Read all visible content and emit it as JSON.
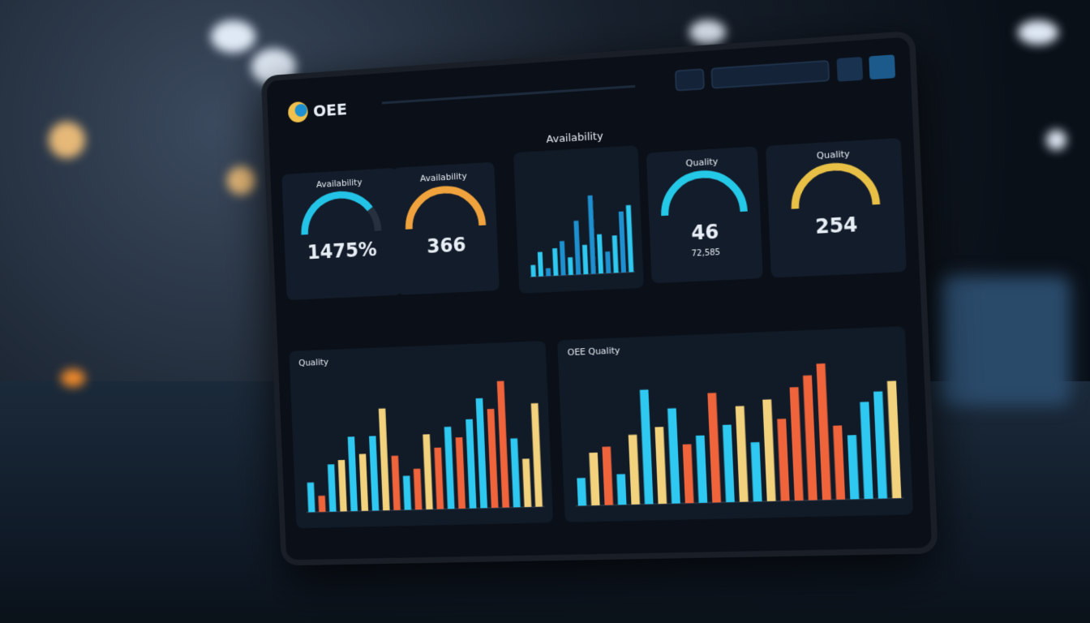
{
  "header": {
    "title": "OEE"
  },
  "gauges": [
    {
      "title": "Availability",
      "value": "1475%",
      "level": 0.8,
      "color": "#22c3e6"
    },
    {
      "title": "Availability",
      "value": "366",
      "level": 1,
      "color": "#f0a33c"
    },
    {
      "title": "Quality",
      "value": "46",
      "sub": "72,585",
      "level": 1,
      "color": "#24c9e8"
    },
    {
      "title": "Quality",
      "value": "254",
      "level": 1,
      "color": "#e9c046"
    }
  ],
  "charts": [
    {
      "type": "bar",
      "title": "Availability",
      "ylim": [
        0,
        100
      ],
      "values": [
        12,
        25,
        8,
        28,
        35,
        18,
        55,
        30,
        80,
        40,
        22,
        38,
        62,
        68
      ],
      "colors": [
        "#2ec8f0",
        "#2ec8f0",
        "#1e90d0",
        "#2ec8f0",
        "#1e90d0",
        "#2ec8f0",
        "#1e90d0",
        "#2ec8f0",
        "#1e90d0",
        "#2ec8f0",
        "#1e90d0",
        "#2ec8f0",
        "#1e90d0",
        "#2ec8f0"
      ]
    },
    {
      "type": "bar",
      "title": "Quality",
      "ylim": [
        0,
        100
      ],
      "values": [
        22,
        12,
        35,
        38,
        55,
        42,
        55,
        75,
        40,
        25,
        30,
        55,
        45,
        60,
        52,
        65,
        80,
        72,
        92,
        50,
        35,
        75
      ],
      "colors": [
        "#2ec8f0",
        "#f0643c",
        "#2ec8f0",
        "#f2d27c",
        "#2ec8f0",
        "#f2d27c",
        "#2ec8f0",
        "#f2d27c",
        "#f0643c",
        "#2ec8f0",
        "#f0643c",
        "#f2d27c",
        "#f0643c",
        "#2ec8f0",
        "#f0643c",
        "#2ec8f0",
        "#2ec8f0",
        "#f0643c",
        "#f0643c",
        "#2ec8f0",
        "#f2d27c",
        "#f2d27c"
      ]
    },
    {
      "type": "bar",
      "title": "OEE Quality",
      "ylim": [
        0,
        100
      ],
      "values": [
        20,
        38,
        42,
        22,
        50,
        82,
        55,
        68,
        42,
        48,
        78,
        55,
        68,
        42,
        72,
        58,
        80,
        88,
        96,
        52,
        45,
        68,
        75,
        82
      ],
      "colors": [
        "#2ec8f0",
        "#f2d27c",
        "#f0643c",
        "#2ec8f0",
        "#f2d27c",
        "#2ec8f0",
        "#f2d27c",
        "#2ec8f0",
        "#f0643c",
        "#2ec8f0",
        "#f0643c",
        "#2ec8f0",
        "#f2d27c",
        "#2ec8f0",
        "#f2d27c",
        "#f0643c",
        "#f0643c",
        "#f0643c",
        "#f0643c",
        "#f0643c",
        "#2ec8f0",
        "#2ec8f0",
        "#2ec8f0",
        "#f2d27c"
      ]
    }
  ]
}
